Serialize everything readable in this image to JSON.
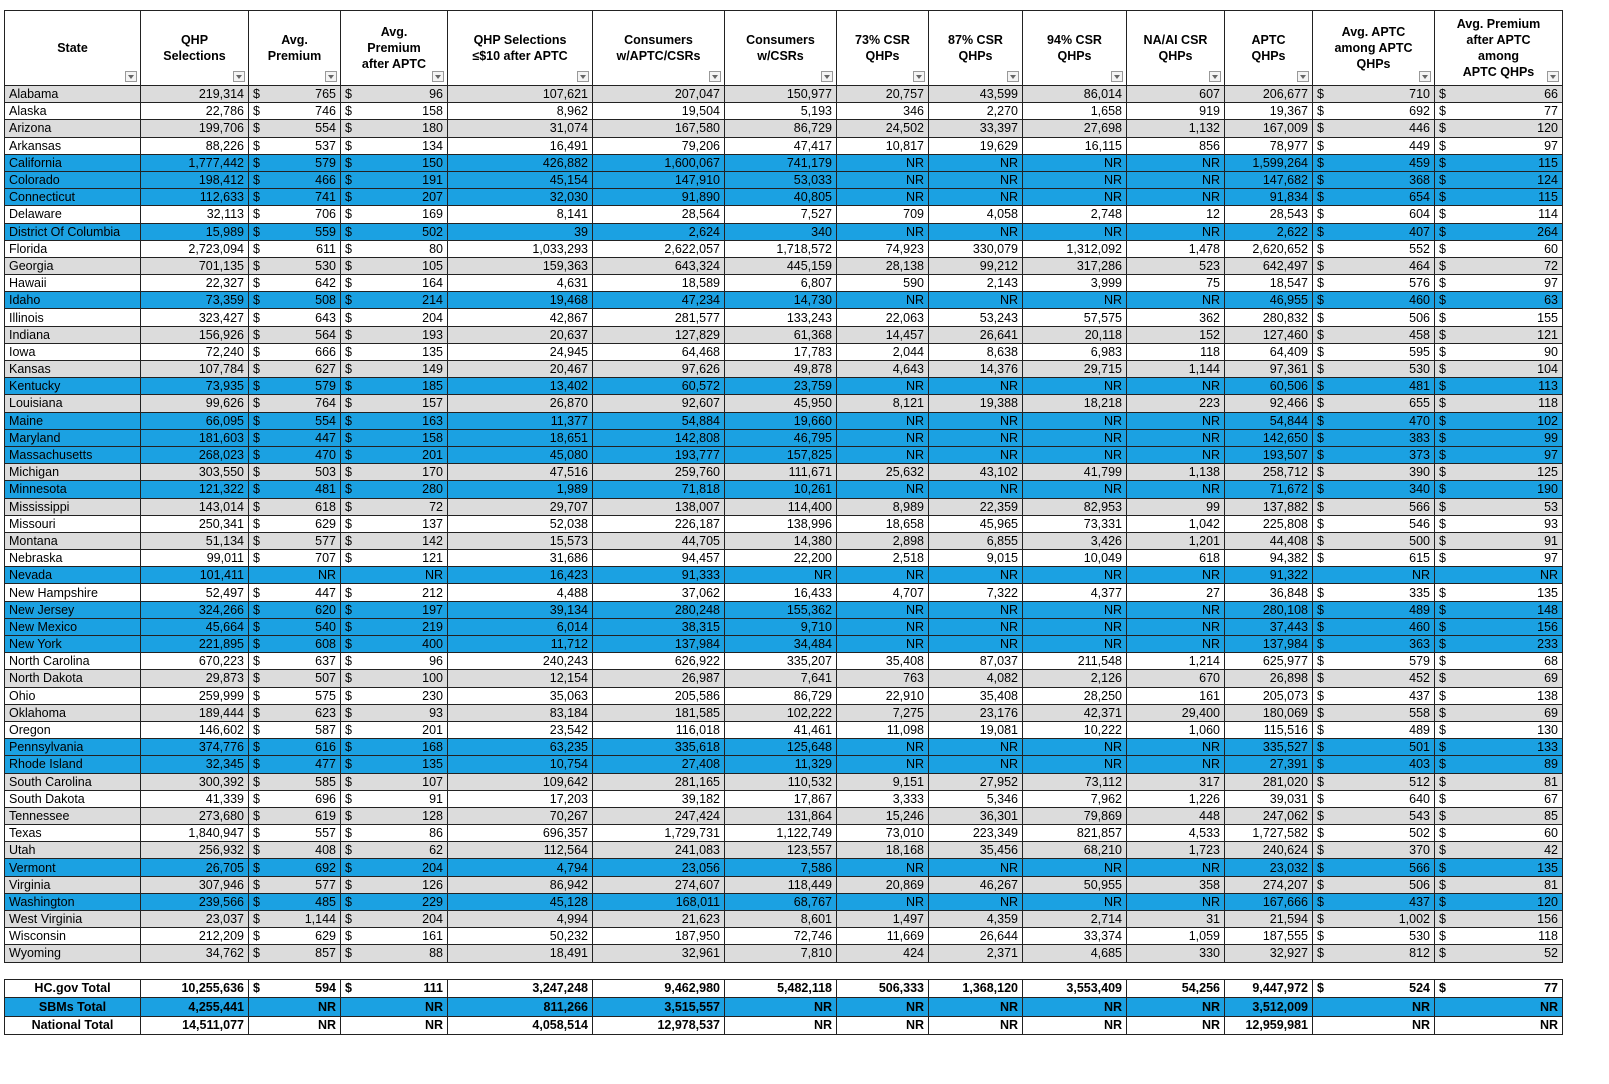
{
  "table": {
    "currency_symbol": "$",
    "headers": [
      "State",
      "QHP\nSelections",
      "Avg.\nPremium",
      "Avg.\nPremium\nafter APTC",
      "QHP Selections\n≤$10 after APTC",
      "Consumers\nw/APTC/CSRs",
      "Consumers\nw/CSRs",
      "73% CSR\nQHPs",
      "87% CSR\nQHPs",
      "94% CSR\nQHPs",
      "NA/AI CSR\nQHPs",
      "APTC\nQHPs",
      "Avg. APTC\namong APTC\nQHPs",
      "Avg. Premium\nafter APTC\namong\nAPTC QHPs"
    ],
    "rows": [
      {
        "sbm": false,
        "cells": [
          "Alabama",
          "219,314",
          "765",
          "96",
          "107,621",
          "207,047",
          "150,977",
          "20,757",
          "43,599",
          "86,014",
          "607",
          "206,677",
          "710",
          "66"
        ]
      },
      {
        "sbm": false,
        "cells": [
          "Alaska",
          "22,786",
          "746",
          "158",
          "8,962",
          "19,504",
          "5,193",
          "346",
          "2,270",
          "1,658",
          "919",
          "19,367",
          "692",
          "77"
        ]
      },
      {
        "sbm": false,
        "cells": [
          "Arizona",
          "199,706",
          "554",
          "180",
          "31,074",
          "167,580",
          "86,729",
          "24,502",
          "33,397",
          "27,698",
          "1,132",
          "167,009",
          "446",
          "120"
        ]
      },
      {
        "sbm": false,
        "cells": [
          "Arkansas",
          "88,226",
          "537",
          "134",
          "16,491",
          "79,206",
          "47,417",
          "10,817",
          "19,629",
          "16,115",
          "856",
          "78,977",
          "449",
          "97"
        ]
      },
      {
        "sbm": true,
        "cells": [
          "California",
          "1,777,442",
          "579",
          "150",
          "426,882",
          "1,600,067",
          "741,179",
          "NR",
          "NR",
          "NR",
          "NR",
          "1,599,264",
          "459",
          "115"
        ]
      },
      {
        "sbm": true,
        "cells": [
          "Colorado",
          "198,412",
          "466",
          "191",
          "45,154",
          "147,910",
          "53,033",
          "NR",
          "NR",
          "NR",
          "NR",
          "147,682",
          "368",
          "124"
        ]
      },
      {
        "sbm": true,
        "cells": [
          "Connecticut",
          "112,633",
          "741",
          "207",
          "32,030",
          "91,890",
          "40,805",
          "NR",
          "NR",
          "NR",
          "NR",
          "91,834",
          "654",
          "115"
        ]
      },
      {
        "sbm": false,
        "cells": [
          "Delaware",
          "32,113",
          "706",
          "169",
          "8,141",
          "28,564",
          "7,527",
          "709",
          "4,058",
          "2,748",
          "12",
          "28,543",
          "604",
          "114"
        ]
      },
      {
        "sbm": true,
        "cells": [
          "District Of Columbia",
          "15,989",
          "559",
          "502",
          "39",
          "2,624",
          "340",
          "NR",
          "NR",
          "NR",
          "NR",
          "2,622",
          "407",
          "264"
        ]
      },
      {
        "sbm": false,
        "cells": [
          "Florida",
          "2,723,094",
          "611",
          "80",
          "1,033,293",
          "2,622,057",
          "1,718,572",
          "74,923",
          "330,079",
          "1,312,092",
          "1,478",
          "2,620,652",
          "552",
          "60"
        ]
      },
      {
        "sbm": false,
        "cells": [
          "Georgia",
          "701,135",
          "530",
          "105",
          "159,363",
          "643,324",
          "445,159",
          "28,138",
          "99,212",
          "317,286",
          "523",
          "642,497",
          "464",
          "72"
        ]
      },
      {
        "sbm": false,
        "cells": [
          "Hawaii",
          "22,327",
          "642",
          "164",
          "4,631",
          "18,589",
          "6,807",
          "590",
          "2,143",
          "3,999",
          "75",
          "18,547",
          "576",
          "97"
        ]
      },
      {
        "sbm": true,
        "cells": [
          "Idaho",
          "73,359",
          "508",
          "214",
          "19,468",
          "47,234",
          "14,730",
          "NR",
          "NR",
          "NR",
          "NR",
          "46,955",
          "460",
          "63"
        ]
      },
      {
        "sbm": false,
        "cells": [
          "Illinois",
          "323,427",
          "643",
          "204",
          "42,867",
          "281,577",
          "133,243",
          "22,063",
          "53,243",
          "57,575",
          "362",
          "280,832",
          "506",
          "155"
        ]
      },
      {
        "sbm": false,
        "cells": [
          "Indiana",
          "156,926",
          "564",
          "193",
          "20,637",
          "127,829",
          "61,368",
          "14,457",
          "26,641",
          "20,118",
          "152",
          "127,460",
          "458",
          "121"
        ]
      },
      {
        "sbm": false,
        "cells": [
          "Iowa",
          "72,240",
          "666",
          "135",
          "24,945",
          "64,468",
          "17,783",
          "2,044",
          "8,638",
          "6,983",
          "118",
          "64,409",
          "595",
          "90"
        ]
      },
      {
        "sbm": false,
        "cells": [
          "Kansas",
          "107,784",
          "627",
          "149",
          "20,467",
          "97,626",
          "49,878",
          "4,643",
          "14,376",
          "29,715",
          "1,144",
          "97,361",
          "530",
          "104"
        ]
      },
      {
        "sbm": true,
        "cells": [
          "Kentucky",
          "73,935",
          "579",
          "185",
          "13,402",
          "60,572",
          "23,759",
          "NR",
          "NR",
          "NR",
          "NR",
          "60,506",
          "481",
          "113"
        ]
      },
      {
        "sbm": false,
        "cells": [
          "Louisiana",
          "99,626",
          "764",
          "157",
          "26,870",
          "92,607",
          "45,950",
          "8,121",
          "19,388",
          "18,218",
          "223",
          "92,466",
          "655",
          "118"
        ]
      },
      {
        "sbm": true,
        "cells": [
          "Maine",
          "66,095",
          "554",
          "163",
          "11,377",
          "54,884",
          "19,660",
          "NR",
          "NR",
          "NR",
          "NR",
          "54,844",
          "470",
          "102"
        ]
      },
      {
        "sbm": true,
        "cells": [
          "Maryland",
          "181,603",
          "447",
          "158",
          "18,651",
          "142,808",
          "46,795",
          "NR",
          "NR",
          "NR",
          "NR",
          "142,650",
          "383",
          "99"
        ]
      },
      {
        "sbm": true,
        "cells": [
          "Massachusetts",
          "268,023",
          "470",
          "201",
          "45,080",
          "193,777",
          "157,825",
          "NR",
          "NR",
          "NR",
          "NR",
          "193,507",
          "373",
          "97"
        ]
      },
      {
        "sbm": false,
        "cells": [
          "Michigan",
          "303,550",
          "503",
          "170",
          "47,516",
          "259,760",
          "111,671",
          "25,632",
          "43,102",
          "41,799",
          "1,138",
          "258,712",
          "390",
          "125"
        ]
      },
      {
        "sbm": true,
        "cells": [
          "Minnesota",
          "121,322",
          "481",
          "280",
          "1,989",
          "71,818",
          "10,261",
          "NR",
          "NR",
          "NR",
          "NR",
          "71,672",
          "340",
          "190"
        ]
      },
      {
        "sbm": false,
        "cells": [
          "Mississippi",
          "143,014",
          "618",
          "72",
          "29,707",
          "138,007",
          "114,400",
          "8,989",
          "22,359",
          "82,953",
          "99",
          "137,882",
          "566",
          "53"
        ]
      },
      {
        "sbm": false,
        "cells": [
          "Missouri",
          "250,341",
          "629",
          "137",
          "52,038",
          "226,187",
          "138,996",
          "18,658",
          "45,965",
          "73,331",
          "1,042",
          "225,808",
          "546",
          "93"
        ]
      },
      {
        "sbm": false,
        "cells": [
          "Montana",
          "51,134",
          "577",
          "142",
          "15,573",
          "44,705",
          "14,380",
          "2,898",
          "6,855",
          "3,426",
          "1,201",
          "44,408",
          "500",
          "91"
        ]
      },
      {
        "sbm": false,
        "cells": [
          "Nebraska",
          "99,011",
          "707",
          "121",
          "31,686",
          "94,457",
          "22,200",
          "2,518",
          "9,015",
          "10,049",
          "618",
          "94,382",
          "615",
          "97"
        ]
      },
      {
        "sbm": true,
        "cells": [
          "Nevada",
          "101,411",
          "NR",
          "NR",
          "16,423",
          "91,333",
          "NR",
          "NR",
          "NR",
          "NR",
          "NR",
          "91,322",
          "NR",
          "NR"
        ]
      },
      {
        "sbm": false,
        "cells": [
          "New Hampshire",
          "52,497",
          "447",
          "212",
          "4,488",
          "37,062",
          "16,433",
          "4,707",
          "7,322",
          "4,377",
          "27",
          "36,848",
          "335",
          "135"
        ]
      },
      {
        "sbm": true,
        "cells": [
          "New Jersey",
          "324,266",
          "620",
          "197",
          "39,134",
          "280,248",
          "155,362",
          "NR",
          "NR",
          "NR",
          "NR",
          "280,108",
          "489",
          "148"
        ]
      },
      {
        "sbm": true,
        "cells": [
          "New Mexico",
          "45,664",
          "540",
          "219",
          "6,014",
          "38,315",
          "9,710",
          "NR",
          "NR",
          "NR",
          "NR",
          "37,443",
          "460",
          "156"
        ]
      },
      {
        "sbm": true,
        "cells": [
          "New York",
          "221,895",
          "608",
          "400",
          "11,712",
          "137,984",
          "34,484",
          "NR",
          "NR",
          "NR",
          "NR",
          "137,984",
          "363",
          "233"
        ]
      },
      {
        "sbm": false,
        "cells": [
          "North Carolina",
          "670,223",
          "637",
          "96",
          "240,243",
          "626,922",
          "335,207",
          "35,408",
          "87,037",
          "211,548",
          "1,214",
          "625,977",
          "579",
          "68"
        ]
      },
      {
        "sbm": false,
        "cells": [
          "North Dakota",
          "29,873",
          "507",
          "100",
          "12,154",
          "26,987",
          "7,641",
          "763",
          "4,082",
          "2,126",
          "670",
          "26,898",
          "452",
          "69"
        ]
      },
      {
        "sbm": false,
        "cells": [
          "Ohio",
          "259,999",
          "575",
          "230",
          "35,063",
          "205,586",
          "86,729",
          "22,910",
          "35,408",
          "28,250",
          "161",
          "205,073",
          "437",
          "138"
        ]
      },
      {
        "sbm": false,
        "cells": [
          "Oklahoma",
          "189,444",
          "623",
          "93",
          "83,184",
          "181,585",
          "102,222",
          "7,275",
          "23,176",
          "42,371",
          "29,400",
          "180,069",
          "558",
          "69"
        ]
      },
      {
        "sbm": false,
        "cells": [
          "Oregon",
          "146,602",
          "587",
          "201",
          "23,542",
          "116,018",
          "41,461",
          "11,098",
          "19,081",
          "10,222",
          "1,060",
          "115,516",
          "489",
          "130"
        ]
      },
      {
        "sbm": true,
        "cells": [
          "Pennsylvania",
          "374,776",
          "616",
          "168",
          "63,235",
          "335,618",
          "125,648",
          "NR",
          "NR",
          "NR",
          "NR",
          "335,527",
          "501",
          "133"
        ]
      },
      {
        "sbm": true,
        "cells": [
          "Rhode Island",
          "32,345",
          "477",
          "135",
          "10,754",
          "27,408",
          "11,329",
          "NR",
          "NR",
          "NR",
          "NR",
          "27,391",
          "403",
          "89"
        ]
      },
      {
        "sbm": false,
        "cells": [
          "South Carolina",
          "300,392",
          "585",
          "107",
          "109,642",
          "281,165",
          "110,532",
          "9,151",
          "27,952",
          "73,112",
          "317",
          "281,020",
          "512",
          "81"
        ]
      },
      {
        "sbm": false,
        "cells": [
          "South Dakota",
          "41,339",
          "696",
          "91",
          "17,203",
          "39,182",
          "17,867",
          "3,333",
          "5,346",
          "7,962",
          "1,226",
          "39,031",
          "640",
          "67"
        ]
      },
      {
        "sbm": false,
        "cells": [
          "Tennessee",
          "273,680",
          "619",
          "128",
          "70,267",
          "247,424",
          "131,864",
          "15,246",
          "36,301",
          "79,869",
          "448",
          "247,062",
          "543",
          "85"
        ]
      },
      {
        "sbm": false,
        "cells": [
          "Texas",
          "1,840,947",
          "557",
          "86",
          "696,357",
          "1,729,731",
          "1,122,749",
          "73,010",
          "223,349",
          "821,857",
          "4,533",
          "1,727,582",
          "502",
          "60"
        ]
      },
      {
        "sbm": false,
        "cells": [
          "Utah",
          "256,932",
          "408",
          "62",
          "112,564",
          "241,083",
          "123,557",
          "18,168",
          "35,456",
          "68,210",
          "1,723",
          "240,624",
          "370",
          "42"
        ]
      },
      {
        "sbm": true,
        "cells": [
          "Vermont",
          "26,705",
          "692",
          "204",
          "4,794",
          "23,056",
          "7,586",
          "NR",
          "NR",
          "NR",
          "NR",
          "23,032",
          "566",
          "135"
        ]
      },
      {
        "sbm": false,
        "cells": [
          "Virginia",
          "307,946",
          "577",
          "126",
          "86,942",
          "274,607",
          "118,449",
          "20,869",
          "46,267",
          "50,955",
          "358",
          "274,207",
          "506",
          "81"
        ]
      },
      {
        "sbm": true,
        "cells": [
          "Washington",
          "239,566",
          "485",
          "229",
          "45,128",
          "168,011",
          "68,767",
          "NR",
          "NR",
          "NR",
          "NR",
          "167,666",
          "437",
          "120"
        ]
      },
      {
        "sbm": false,
        "cells": [
          "West Virginia",
          "23,037",
          "1,144",
          "204",
          "4,994",
          "21,623",
          "8,601",
          "1,497",
          "4,359",
          "2,714",
          "31",
          "21,594",
          "1,002",
          "156"
        ]
      },
      {
        "sbm": false,
        "cells": [
          "Wisconsin",
          "212,209",
          "629",
          "161",
          "50,232",
          "187,950",
          "72,746",
          "11,669",
          "26,644",
          "33,374",
          "1,059",
          "187,555",
          "530",
          "118"
        ]
      },
      {
        "sbm": false,
        "cells": [
          "Wyoming",
          "34,762",
          "857",
          "88",
          "18,491",
          "32,961",
          "7,810",
          "424",
          "2,371",
          "4,685",
          "330",
          "32,927",
          "812",
          "52"
        ]
      }
    ],
    "totals": [
      {
        "sbm": false,
        "cells": [
          "HC.gov Total",
          "10,255,636",
          "594",
          "111",
          "3,247,248",
          "9,462,980",
          "5,482,118",
          "506,333",
          "1,368,120",
          "3,553,409",
          "54,256",
          "9,447,972",
          "524",
          "77"
        ]
      },
      {
        "sbm": true,
        "cells": [
          "SBMs Total",
          "4,255,441",
          "NR",
          "NR",
          "811,266",
          "3,515,557",
          "NR",
          "NR",
          "NR",
          "NR",
          "NR",
          "3,512,009",
          "NR",
          "NR"
        ]
      },
      {
        "sbm": false,
        "cells": [
          "National Total",
          "14,511,077",
          "NR",
          "NR",
          "4,058,514",
          "12,978,537",
          "NR",
          "NR",
          "NR",
          "NR",
          "NR",
          "12,959,981",
          "NR",
          "NR"
        ]
      }
    ]
  }
}
